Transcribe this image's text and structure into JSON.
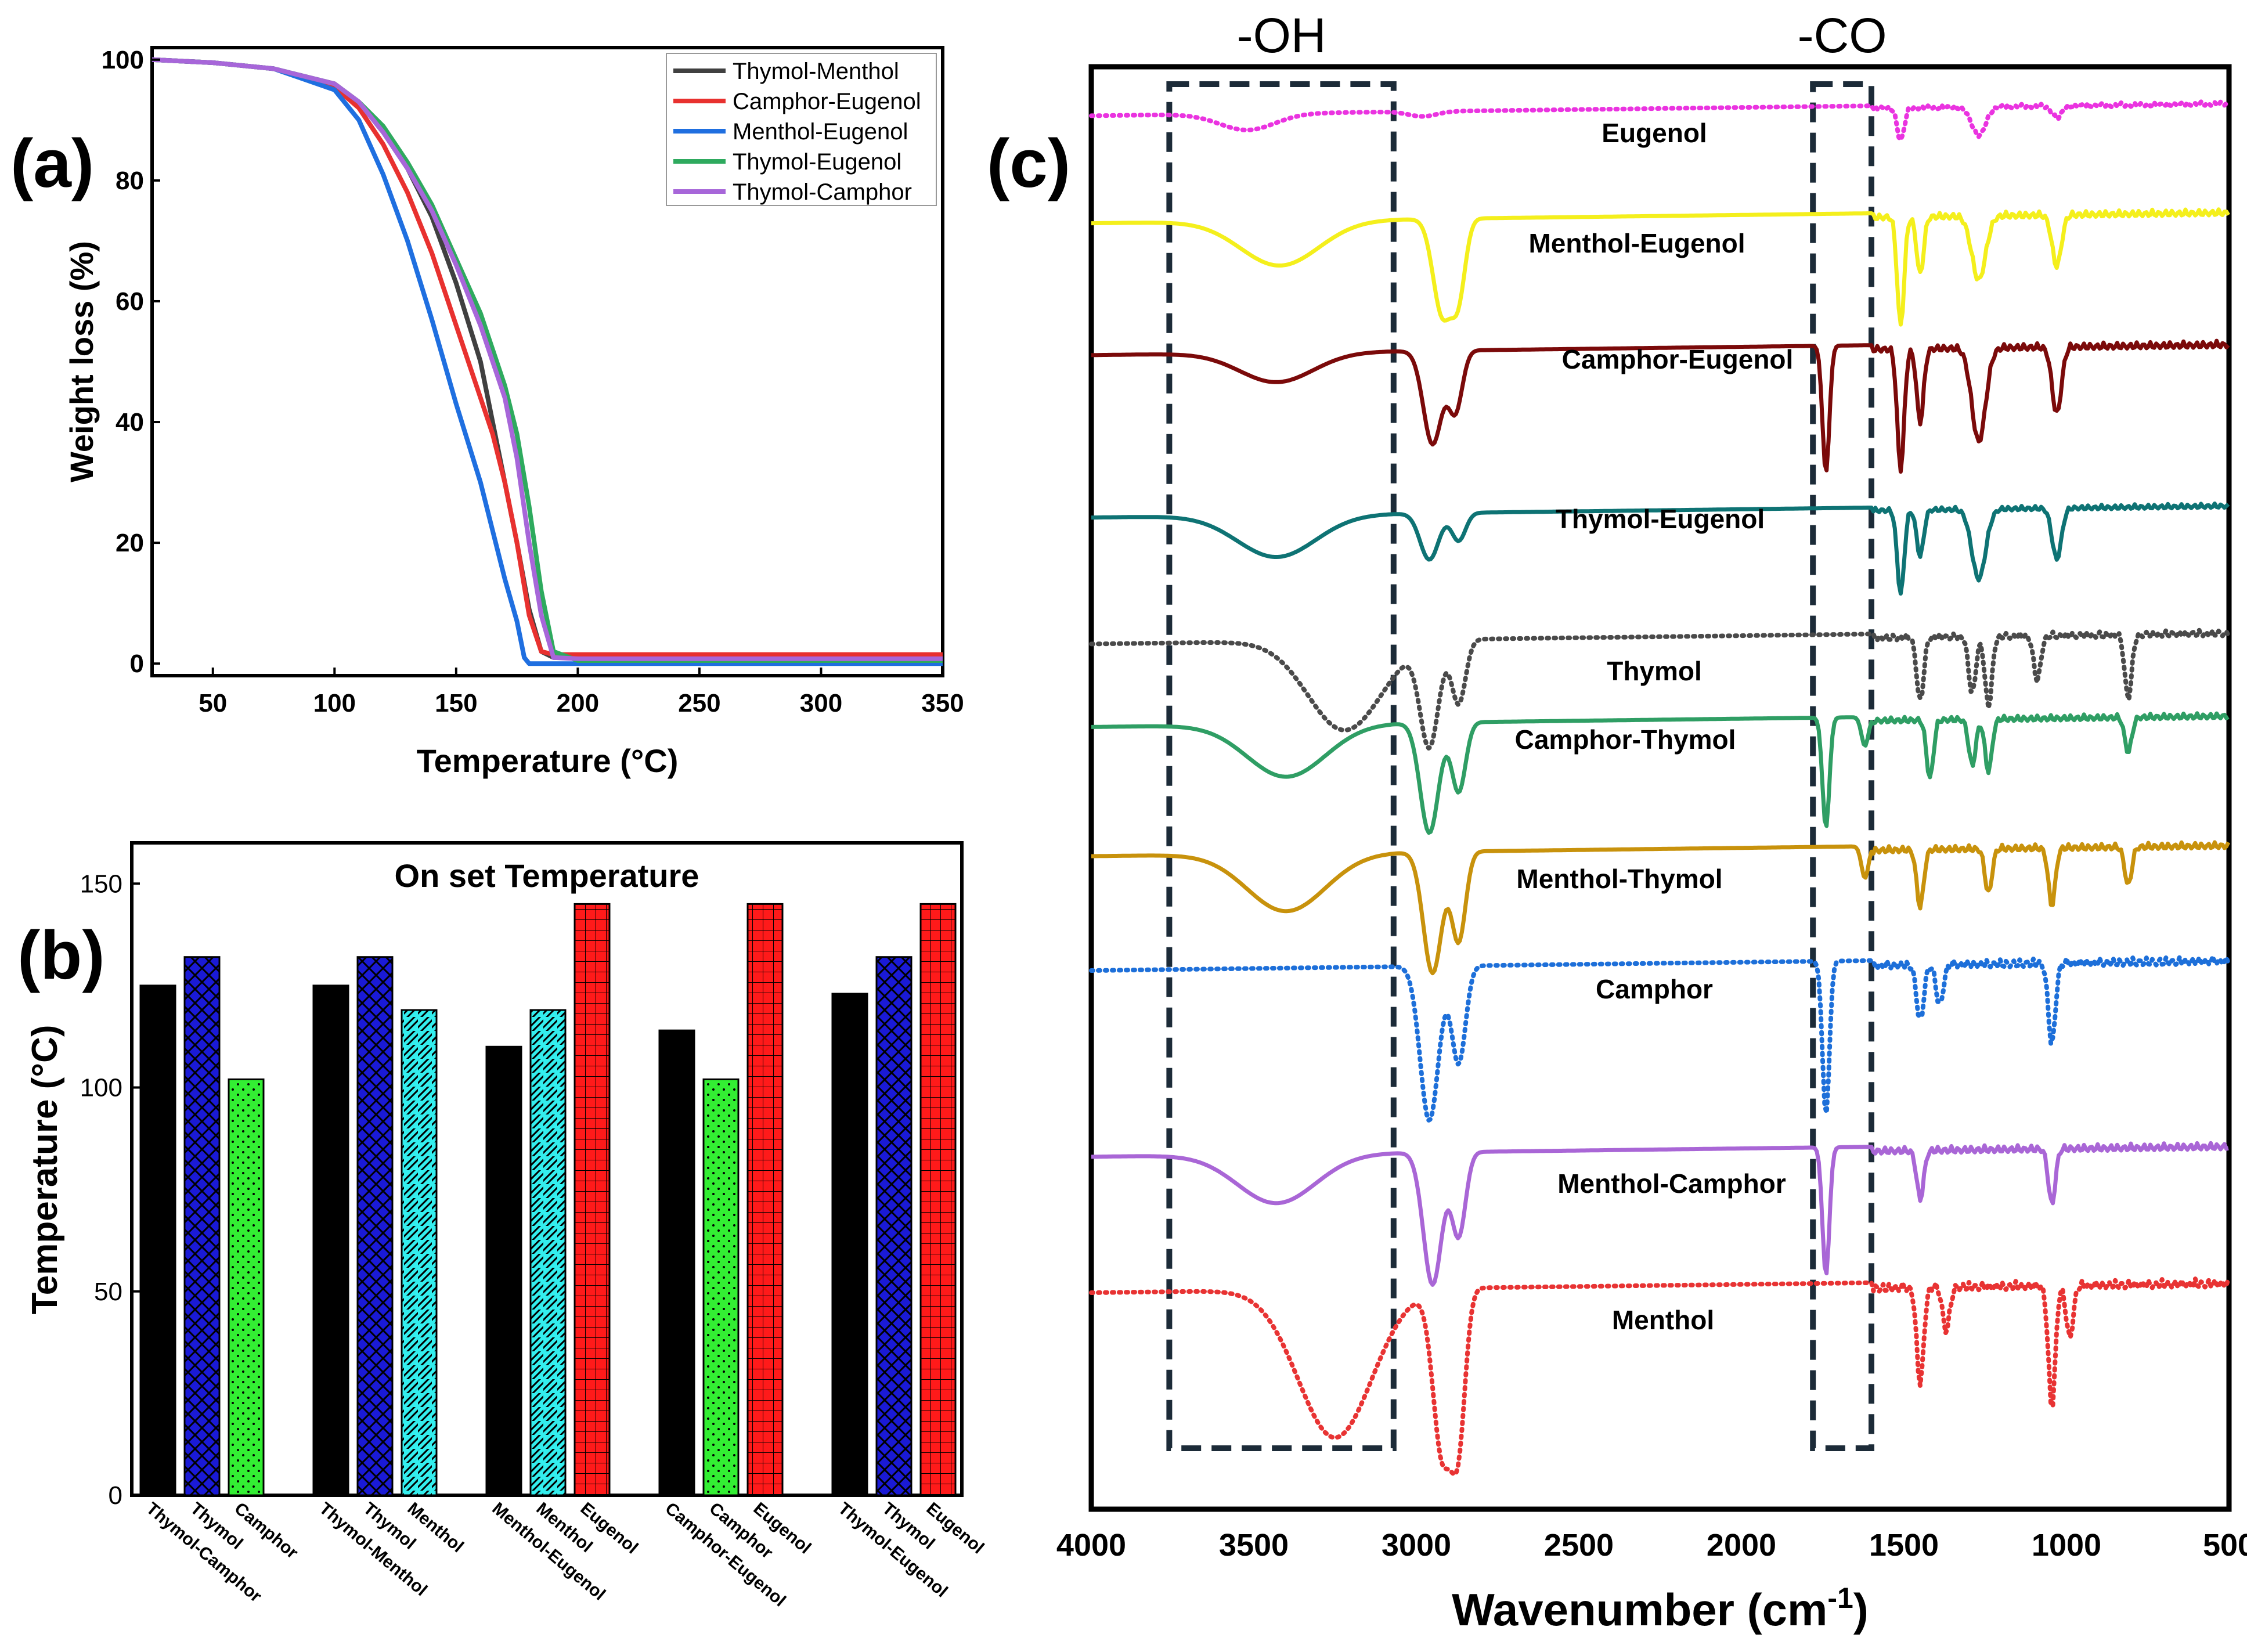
{
  "chart_data": [
    {
      "panel": "(a)",
      "type": "line",
      "xlabel": "Temperature (°C)",
      "ylabel": "Weight loss (%)",
      "xlim": [
        25,
        350
      ],
      "ylim": [
        -2,
        102
      ],
      "xticks": [
        "50",
        "100",
        "150",
        "200",
        "250",
        "300",
        "350"
      ],
      "xtick_values": [
        50,
        100,
        150,
        200,
        250,
        300,
        350
      ],
      "yticks": [
        "0",
        "20",
        "40",
        "60",
        "80",
        "100"
      ],
      "ytick_values": [
        0,
        20,
        40,
        60,
        80,
        100
      ],
      "legend_position": "top-right",
      "series": [
        {
          "name": "Thymol-Menthol",
          "color": "#404040",
          "x": [
            25,
            50,
            75,
            100,
            110,
            120,
            130,
            140,
            150,
            160,
            165,
            170,
            175,
            180,
            185,
            190,
            200,
            250,
            300,
            350
          ],
          "y": [
            100,
            99.5,
            98.5,
            96,
            93,
            88,
            82,
            74,
            63,
            50,
            40,
            30,
            20,
            9,
            2,
            1,
            1,
            1,
            1,
            1
          ]
        },
        {
          "name": "Camphor-Eugenol",
          "color": "#e8312f",
          "x": [
            25,
            50,
            75,
            100,
            110,
            120,
            130,
            140,
            150,
            160,
            165,
            170,
            175,
            180,
            185,
            190,
            200,
            250,
            300,
            350
          ],
          "y": [
            100,
            99.5,
            98.5,
            95.5,
            92,
            86,
            78,
            68,
            56,
            44,
            38,
            30,
            20,
            8,
            2,
            1.5,
            1.5,
            1.5,
            1.5,
            1.5
          ]
        },
        {
          "name": "Menthol-Eugenol",
          "color": "#1f6fe0",
          "x": [
            25,
            50,
            75,
            100,
            110,
            120,
            130,
            140,
            150,
            160,
            165,
            170,
            175,
            178,
            180,
            200,
            250,
            300,
            350
          ],
          "y": [
            100,
            99.5,
            98.5,
            95,
            90,
            81,
            70,
            57,
            43,
            30,
            22,
            14,
            7,
            1,
            0,
            0,
            0,
            0,
            0
          ]
        },
        {
          "name": "Thymol-Eugenol",
          "color": "#2eaa5e",
          "x": [
            25,
            50,
            75,
            100,
            110,
            120,
            130,
            140,
            150,
            160,
            170,
            175,
            180,
            185,
            190,
            200,
            250,
            300,
            350
          ],
          "y": [
            100,
            99.5,
            98.5,
            96,
            93,
            89,
            83,
            76,
            67,
            58,
            46,
            38,
            26,
            12,
            2,
            0.5,
            0.5,
            0.5,
            0.5
          ]
        },
        {
          "name": "Thymol-Camphor",
          "color": "#a766d9",
          "x": [
            25,
            50,
            75,
            100,
            110,
            120,
            130,
            140,
            150,
            160,
            170,
            175,
            180,
            185,
            190,
            200,
            250,
            300,
            350
          ],
          "y": [
            100,
            99.5,
            98.5,
            96,
            93,
            88,
            82,
            75,
            66,
            56,
            44,
            34,
            20,
            8,
            1,
            0.8,
            0.8,
            0.8,
            0.8
          ]
        }
      ]
    },
    {
      "panel": "(b)",
      "type": "bar",
      "title": "On set Temperature",
      "ylabel": "Temperature (°C)",
      "ylim": [
        0,
        160
      ],
      "yticks": [
        "0",
        "50",
        "100",
        "150"
      ],
      "ytick_values": [
        0,
        50,
        100,
        150
      ],
      "groups": [
        {
          "bars": [
            {
              "label": "Thymol-Camphor",
              "value": 125,
              "style": "black"
            },
            {
              "label": "Thymol",
              "value": 132,
              "style": "blue-cross"
            },
            {
              "label": "Camphor",
              "value": 102,
              "style": "green-dots"
            }
          ]
        },
        {
          "bars": [
            {
              "label": "Thymol-Menthol",
              "value": 125,
              "style": "black"
            },
            {
              "label": "Thymol",
              "value": 132,
              "style": "blue-cross"
            },
            {
              "label": "Menthol",
              "value": 119,
              "style": "cyan-hatch"
            }
          ]
        },
        {
          "bars": [
            {
              "label": "Menthol-Eugenol",
              "value": 110,
              "style": "black"
            },
            {
              "label": "Menthol",
              "value": 119,
              "style": "cyan-hatch"
            },
            {
              "label": "Eugenol",
              "value": 145,
              "style": "red-grid"
            }
          ]
        },
        {
          "bars": [
            {
              "label": "Camphor-Eugenol",
              "value": 114,
              "style": "black"
            },
            {
              "label": "Camphor",
              "value": 102,
              "style": "green-dots"
            },
            {
              "label": "Eugenol",
              "value": 145,
              "style": "red-grid"
            }
          ]
        },
        {
          "bars": [
            {
              "label": "Thymol-Eugenol",
              "value": 123,
              "style": "black"
            },
            {
              "label": "Thymol",
              "value": 132,
              "style": "blue-cross"
            },
            {
              "label": "Eugenol",
              "value": 145,
              "style": "red-grid"
            }
          ]
        }
      ]
    },
    {
      "panel": "(c)",
      "type": "line",
      "xlabel": "Wavenumber (cm",
      "xlabel_sup": "-1",
      "xlabel_end": ")",
      "xlim": [
        4000,
        500
      ],
      "xticks": [
        "4000",
        "3500",
        "3000",
        "2500",
        "2000",
        "1500",
        "1000",
        "500"
      ],
      "xtick_values": [
        4000,
        3500,
        3000,
        2500,
        2000,
        1500,
        1000,
        500
      ],
      "regions": [
        {
          "label": "-OH",
          "from": 3760,
          "to": 3070
        },
        {
          "label": "-CO",
          "from": 1780,
          "to": 1600
        }
      ],
      "series": [
        {
          "name": "Eugenol",
          "color": "#ea33e0",
          "dotted": true,
          "baseline": 0.93,
          "bands": [
            [
              3520,
              120,
              0.2,
              0.33
            ],
            [
              2980,
              60,
              0.06,
              0.5
            ],
            [
              1510,
              15,
              0.4,
              0.6
            ],
            [
              1270,
              30,
              0.35,
              0.6
            ],
            [
              1030,
              20,
              0.15,
              0.6
            ]
          ]
        },
        {
          "name": "Menthol-Eugenol",
          "color": "#f4ef1c",
          "dotted": false,
          "baseline": 0.72,
          "bands": [
            [
              3420,
              170,
              0.35,
              0.33
            ],
            [
              2920,
              40,
              0.75,
              0.5
            ],
            [
              2870,
              30,
              0.55,
              0.5
            ],
            [
              1510,
              15,
              0.85,
              0.6
            ],
            [
              1450,
              15,
              0.45,
              0.6
            ],
            [
              1270,
              30,
              0.5,
              0.6
            ],
            [
              1030,
              20,
              0.4,
              0.6
            ]
          ]
        },
        {
          "name": "Camphor-Eugenol",
          "color": "#7b0a0a",
          "dotted": false,
          "baseline": 0.66,
          "bands": [
            [
              3430,
              160,
              0.22,
              0.33
            ],
            [
              2950,
              40,
              0.7,
              0.5
            ],
            [
              2880,
              30,
              0.45,
              0.5
            ],
            [
              1740,
              15,
              0.95,
              0.5
            ],
            [
              1510,
              15,
              0.9,
              0.6
            ],
            [
              1450,
              15,
              0.55,
              0.6
            ],
            [
              1270,
              30,
              0.7,
              0.6
            ],
            [
              1030,
              20,
              0.5,
              0.6
            ]
          ]
        },
        {
          "name": "Thymol-Eugenol",
          "color": "#0e7374",
          "dotted": false,
          "baseline": 0.62,
          "bands": [
            [
              3430,
              170,
              0.45,
              0.33
            ],
            [
              2960,
              40,
              0.5,
              0.5
            ],
            [
              2870,
              30,
              0.3,
              0.5
            ],
            [
              1510,
              15,
              0.9,
              0.6
            ],
            [
              1450,
              15,
              0.5,
              0.6
            ],
            [
              1270,
              30,
              0.75,
              0.6
            ],
            [
              1030,
              20,
              0.55,
              0.6
            ]
          ]
        },
        {
          "name": "Thymol",
          "color": "#4a4a4a",
          "dotted": true,
          "baseline": 0.68,
          "bands": [
            [
              3220,
              160,
              0.7,
              0.33
            ],
            [
              2960,
              40,
              0.8,
              0.5
            ],
            [
              2870,
              30,
              0.5,
              0.5
            ],
            [
              1450,
              15,
              0.5,
              0.6
            ],
            [
              1290,
              15,
              0.45,
              0.6
            ],
            [
              1240,
              15,
              0.55,
              0.6
            ],
            [
              1090,
              15,
              0.35,
              0.6
            ],
            [
              810,
              15,
              0.5,
              0.6
            ]
          ]
        },
        {
          "name": "Camphor-Thymol",
          "color": "#2f9e64",
          "dotted": false,
          "baseline": 0.78,
          "bands": [
            [
              3400,
              170,
              0.45,
              0.33
            ],
            [
              2960,
              40,
              0.95,
              0.5
            ],
            [
              2870,
              30,
              0.6,
              0.5
            ],
            [
              1740,
              15,
              0.95,
              0.5
            ],
            [
              1620,
              15,
              0.25,
              0.5
            ],
            [
              1420,
              15,
              0.5,
              0.6
            ],
            [
              1290,
              15,
              0.4,
              0.6
            ],
            [
              1240,
              15,
              0.45,
              0.6
            ],
            [
              810,
              15,
              0.3,
              0.6
            ]
          ]
        },
        {
          "name": "Menthol-Thymol",
          "color": "#c8920c",
          "dotted": false,
          "baseline": 0.8,
          "bands": [
            [
              3400,
              170,
              0.45,
              0.33
            ],
            [
              2950,
              40,
              0.95,
              0.5
            ],
            [
              2870,
              30,
              0.7,
              0.5
            ],
            [
              1620,
              15,
              0.25,
              0.5
            ],
            [
              1450,
              15,
              0.45,
              0.6
            ],
            [
              1240,
              15,
              0.35,
              0.6
            ],
            [
              1045,
              15,
              0.45,
              0.6
            ],
            [
              810,
              15,
              0.3,
              0.6
            ]
          ]
        },
        {
          "name": "Camphor",
          "color": "#1d6fd9",
          "dotted": true,
          "baseline": 0.95,
          "bands": [
            [
              2960,
              40,
              0.95,
              0.5
            ],
            [
              2870,
              30,
              0.6,
              0.5
            ],
            [
              1740,
              15,
              0.95,
              0.5
            ],
            [
              1450,
              15,
              0.35,
              0.6
            ],
            [
              1390,
              15,
              0.25,
              0.6
            ],
            [
              1045,
              15,
              0.5,
              0.6
            ]
          ]
        },
        {
          "name": "Menthol-Camphor",
          "color": "#a966d6",
          "dotted": false,
          "baseline": 0.86,
          "bands": [
            [
              3430,
              170,
              0.35,
              0.33
            ],
            [
              2950,
              40,
              0.95,
              0.5
            ],
            [
              2870,
              30,
              0.6,
              0.5
            ],
            [
              1740,
              15,
              0.92,
              0.5
            ],
            [
              1450,
              15,
              0.35,
              0.6
            ],
            [
              1045,
              15,
              0.4,
              0.6
            ]
          ]
        },
        {
          "name": "Menthol",
          "color": "#e83333",
          "dotted": true,
          "baseline": 0.95,
          "bands": [
            [
              3250,
              160,
              0.85,
              0.33
            ],
            [
              2920,
              40,
              0.95,
              0.5
            ],
            [
              2870,
              30,
              0.8,
              0.5
            ],
            [
              1450,
              15,
              0.55,
              0.6
            ],
            [
              1370,
              15,
              0.25,
              0.6
            ],
            [
              1045,
              15,
              0.7,
              0.6
            ],
            [
              990,
              15,
              0.3,
              0.6
            ]
          ]
        }
      ]
    }
  ],
  "panel_labels": {
    "a": "(a)",
    "b": "(b)",
    "c": "(c)"
  }
}
